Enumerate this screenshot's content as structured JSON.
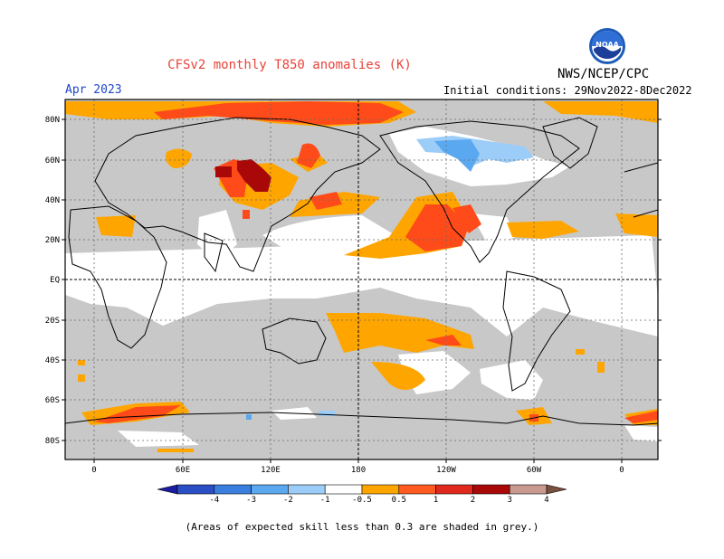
{
  "header": {
    "title": "CFSv2 monthly T850 anomalies (K)",
    "agency": "NWS/NCEP/CPC",
    "month": "Apr 2023",
    "initial_conditions": "Initial conditions: 29Nov2022-8Dec2022",
    "logo_text": "NOAA"
  },
  "map": {
    "lat_labels": [
      "80N",
      "60N",
      "40N",
      "20N",
      "EQ",
      "20S",
      "40S",
      "60S",
      "80S"
    ],
    "lon_labels": [
      "0",
      "60E",
      "120E",
      "180",
      "120W",
      "60W",
      "0"
    ],
    "grid": true
  },
  "colorbar": {
    "labels": [
      "-4",
      "-3",
      "-2",
      "-1",
      "-0.5",
      "0.5",
      "1",
      "2",
      "3",
      "4"
    ],
    "colors": [
      "#1c1ca0",
      "#2c4ec4",
      "#3a7ee0",
      "#5aa8f0",
      "#9ccdf8",
      "#ffffff",
      "#ffa500",
      "#ff5a1f",
      "#e0281c",
      "#a80808",
      "#c89a90",
      "#7a5040"
    ]
  },
  "legend_colors": {
    "grey_low_skill": "#c8c8c8",
    "orange_0_5_1": "#ffa500",
    "red_1_2": "#ff4a1a",
    "darkred_2_3": "#a80808",
    "lightblue_neg": "#9ccdf8",
    "blue_neg": "#5aa8f0"
  },
  "footnote": "(Areas of expected skill less than 0.3 are shaded in grey.)"
}
